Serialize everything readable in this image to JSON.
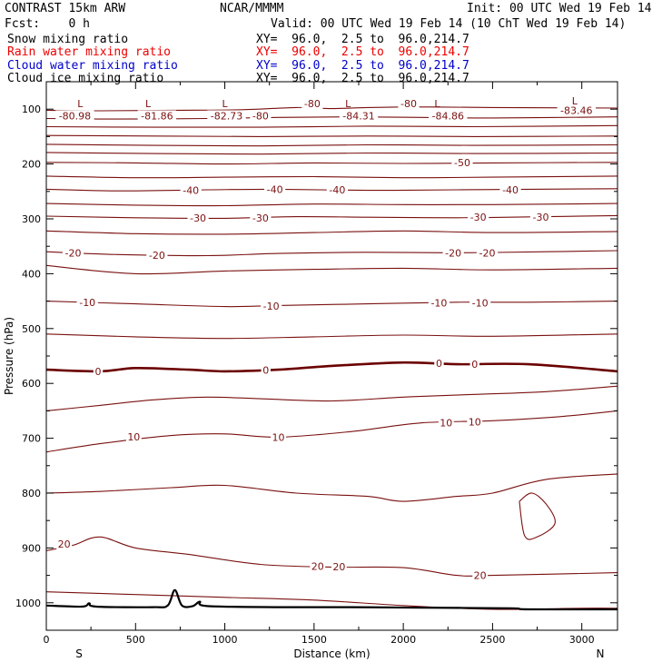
{
  "header": {
    "title": "CONTRAST 15km ARW",
    "center": "NCAR/MMMM",
    "init": "Init: 00 UTC Wed 19 Feb 14",
    "fcst": "Fcst:    0 h",
    "valid": "Valid: 00 UTC Wed 19 Feb 14 (10 ChT Wed 19 Feb 14)"
  },
  "fields": [
    {
      "name": "Snow mixing ratio",
      "xy": "XY=  96.0,  2.5 to  96.0,214.7",
      "color": "#000000"
    },
    {
      "name": "Rain water mixing ratio",
      "xy": "XY=  96.0,  2.5 to  96.0,214.7",
      "color": "#ee0000"
    },
    {
      "name": "Cloud water mixing ratio",
      "xy": "XY=  96.0,  2.5 to  96.0,214.7",
      "color": "#0000cc"
    },
    {
      "name": "Cloud ice mixing ratio",
      "xy": "XY=  96.0,  2.5 to  96.0,214.7",
      "color": "#000000"
    }
  ],
  "chart_data": {
    "type": "line",
    "xlabel": "Distance (km)",
    "ylabel": "Pressure (hPa)",
    "xlim": [
      0,
      3200
    ],
    "ylim": [
      1050,
      50
    ],
    "x_ticks": [
      0,
      500,
      1000,
      1500,
      2000,
      2500,
      3000
    ],
    "y_ticks": [
      100,
      200,
      300,
      400,
      500,
      600,
      700,
      800,
      900,
      1000
    ],
    "end_labels": {
      "left": "S",
      "right": "N"
    },
    "contour_color": "#7a1010",
    "zero_contour_color": "#6b0000",
    "terrain_color": "#000000",
    "isotherm_levels": [
      -85,
      -80,
      -75,
      -70,
      -65,
      -60,
      -55,
      -50,
      -45,
      -40,
      -35,
      -30,
      -25,
      -20,
      -15,
      -10,
      -5,
      0,
      5,
      10,
      15,
      20,
      25
    ],
    "isotherms": [
      {
        "level": -80,
        "points": [
          [
            0,
            102
          ],
          [
            300,
            103
          ],
          [
            700,
            102
          ],
          [
            1100,
            101
          ],
          [
            1400,
            97
          ],
          [
            1600,
            99
          ],
          [
            1800,
            97
          ],
          [
            2100,
            96
          ],
          [
            2500,
            97
          ],
          [
            3200,
            98
          ]
        ]
      },
      {
        "level": -75,
        "points": [
          [
            0,
            117
          ],
          [
            400,
            118
          ],
          [
            900,
            117
          ],
          [
            1300,
            115
          ],
          [
            1700,
            114
          ],
          [
            2100,
            115
          ],
          [
            2500,
            116
          ],
          [
            3200,
            114
          ]
        ]
      },
      {
        "level": -70,
        "points": [
          [
            0,
            132
          ],
          [
            600,
            133
          ],
          [
            1200,
            133
          ],
          [
            1800,
            131
          ],
          [
            2400,
            132
          ],
          [
            3200,
            130
          ]
        ]
      },
      {
        "level": -65,
        "points": [
          [
            0,
            148
          ],
          [
            600,
            149
          ],
          [
            1200,
            150
          ],
          [
            1800,
            149
          ],
          [
            2400,
            150
          ],
          [
            3200,
            149
          ]
        ]
      },
      {
        "level": -60,
        "points": [
          [
            0,
            164
          ],
          [
            600,
            166
          ],
          [
            1200,
            167
          ],
          [
            1800,
            165
          ],
          [
            2400,
            166
          ],
          [
            3200,
            165
          ]
        ]
      },
      {
        "level": -55,
        "points": [
          [
            0,
            179
          ],
          [
            600,
            181
          ],
          [
            1200,
            182
          ],
          [
            1800,
            180
          ],
          [
            2400,
            181
          ],
          [
            3200,
            180
          ]
        ]
      },
      {
        "level": -50,
        "points": [
          [
            0,
            197
          ],
          [
            500,
            198
          ],
          [
            1000,
            200
          ],
          [
            1500,
            198
          ],
          [
            2000,
            199
          ],
          [
            2500,
            198
          ],
          [
            3200,
            197
          ]
        ]
      },
      {
        "level": -45,
        "points": [
          [
            0,
            222
          ],
          [
            500,
            225
          ],
          [
            1000,
            224
          ],
          [
            1500,
            223
          ],
          [
            2000,
            225
          ],
          [
            2500,
            224
          ],
          [
            3200,
            222
          ]
        ]
      },
      {
        "level": -40,
        "points": [
          [
            0,
            246
          ],
          [
            400,
            249
          ],
          [
            900,
            247
          ],
          [
            1300,
            246
          ],
          [
            1800,
            248
          ],
          [
            2300,
            247
          ],
          [
            3200,
            245
          ]
        ]
      },
      {
        "level": -35,
        "points": [
          [
            0,
            272
          ],
          [
            500,
            275
          ],
          [
            1000,
            276
          ],
          [
            1500,
            273
          ],
          [
            2000,
            274
          ],
          [
            2500,
            274
          ],
          [
            3200,
            272
          ]
        ]
      },
      {
        "level": -30,
        "points": [
          [
            0,
            295
          ],
          [
            500,
            298
          ],
          [
            1000,
            299
          ],
          [
            1400,
            296
          ],
          [
            1800,
            297
          ],
          [
            2300,
            298
          ],
          [
            2800,
            296
          ],
          [
            3200,
            294
          ]
        ]
      },
      {
        "level": -25,
        "points": [
          [
            0,
            322
          ],
          [
            500,
            327
          ],
          [
            1000,
            328
          ],
          [
            1500,
            325
          ],
          [
            2000,
            322
          ],
          [
            2500,
            325
          ],
          [
            3200,
            323
          ]
        ]
      },
      {
        "level": -20,
        "points": [
          [
            0,
            360
          ],
          [
            400,
            365
          ],
          [
            900,
            367
          ],
          [
            1300,
            363
          ],
          [
            1800,
            361
          ],
          [
            2300,
            362
          ],
          [
            2800,
            360
          ],
          [
            3200,
            358
          ]
        ]
      },
      {
        "level": -15,
        "points": [
          [
            0,
            385
          ],
          [
            500,
            400
          ],
          [
            1000,
            395
          ],
          [
            1500,
            392
          ],
          [
            2000,
            390
          ],
          [
            2500,
            393
          ],
          [
            3200,
            390
          ]
        ]
      },
      {
        "level": -10,
        "points": [
          [
            0,
            450
          ],
          [
            500,
            455
          ],
          [
            1000,
            460
          ],
          [
            1300,
            458
          ],
          [
            1800,
            455
          ],
          [
            2300,
            452
          ],
          [
            2700,
            452
          ],
          [
            3200,
            450
          ]
        ]
      },
      {
        "level": -5,
        "points": [
          [
            0,
            510
          ],
          [
            500,
            515
          ],
          [
            1000,
            518
          ],
          [
            1500,
            515
          ],
          [
            2000,
            512
          ],
          [
            2500,
            514
          ],
          [
            3200,
            510
          ]
        ]
      },
      {
        "level": 0,
        "points": [
          [
            0,
            575
          ],
          [
            300,
            578
          ],
          [
            500,
            572
          ],
          [
            800,
            575
          ],
          [
            1000,
            578
          ],
          [
            1300,
            575
          ],
          [
            1600,
            568
          ],
          [
            2000,
            562
          ],
          [
            2300,
            565
          ],
          [
            2700,
            565
          ],
          [
            3200,
            578
          ]
        ]
      },
      {
        "level": 5,
        "points": [
          [
            0,
            650
          ],
          [
            300,
            640
          ],
          [
            600,
            630
          ],
          [
            900,
            625
          ],
          [
            1200,
            628
          ],
          [
            1600,
            632
          ],
          [
            2000,
            625
          ],
          [
            2400,
            620
          ],
          [
            2800,
            615
          ],
          [
            3200,
            605
          ]
        ]
      },
      {
        "level": 10,
        "points": [
          [
            0,
            725
          ],
          [
            300,
            710
          ],
          [
            700,
            695
          ],
          [
            1000,
            692
          ],
          [
            1300,
            698
          ],
          [
            1700,
            688
          ],
          [
            2100,
            672
          ],
          [
            2500,
            668
          ],
          [
            2900,
            660
          ],
          [
            3200,
            650
          ]
        ]
      },
      {
        "level": 15,
        "points": [
          [
            0,
            800
          ],
          [
            300,
            797
          ],
          [
            700,
            790
          ],
          [
            1000,
            786
          ],
          [
            1400,
            800
          ],
          [
            1800,
            806
          ],
          [
            2000,
            815
          ],
          [
            2300,
            806
          ],
          [
            2500,
            800
          ],
          [
            2800,
            775
          ],
          [
            3200,
            765
          ]
        ]
      },
      {
        "level": 20,
        "points": [
          [
            0,
            905
          ],
          [
            150,
            895
          ],
          [
            300,
            880
          ],
          [
            500,
            900
          ],
          [
            800,
            912
          ],
          [
            1200,
            930
          ],
          [
            1600,
            935
          ],
          [
            2000,
            936
          ],
          [
            2300,
            950
          ],
          [
            2500,
            950
          ],
          [
            3200,
            945
          ]
        ]
      },
      {
        "level": 25,
        "points": [
          [
            0,
            980
          ],
          [
            500,
            985
          ],
          [
            1000,
            990
          ],
          [
            1500,
            995
          ],
          [
            2000,
            1005
          ],
          [
            2500,
            1012
          ],
          [
            3000,
            1010
          ],
          [
            3200,
            1010
          ]
        ]
      }
    ],
    "closed_contours": [
      {
        "level": 15,
        "points": [
          [
            2650,
            815
          ],
          [
            2720,
            800
          ],
          [
            2800,
            820
          ],
          [
            2850,
            855
          ],
          [
            2750,
            880
          ],
          [
            2680,
            878
          ],
          [
            2650,
            815
          ]
        ]
      }
    ],
    "contour_labels": [
      {
        "text": "-80.98",
        "x": 160,
        "p": 112
      },
      {
        "text": "-81.86",
        "x": 620,
        "p": 112
      },
      {
        "text": "-82.73",
        "x": 1010,
        "p": 112
      },
      {
        "text": "-80",
        "x": 1200,
        "p": 112
      },
      {
        "text": "-84.31",
        "x": 1750,
        "p": 112
      },
      {
        "text": "-84.86",
        "x": 2250,
        "p": 112
      },
      {
        "text": "-83.46",
        "x": 2970,
        "p": 102
      },
      {
        "text": "-80",
        "x": 1490,
        "p": 90
      },
      {
        "text": "-80",
        "x": 2030,
        "p": 90
      },
      {
        "text": "-50",
        "x": 2330,
        "p": 197
      },
      {
        "text": "-40",
        "x": 810,
        "p": 248
      },
      {
        "text": "-40",
        "x": 1280,
        "p": 246
      },
      {
        "text": "-40",
        "x": 1630,
        "p": 247
      },
      {
        "text": "-40",
        "x": 2600,
        "p": 247
      },
      {
        "text": "-30",
        "x": 850,
        "p": 298
      },
      {
        "text": "-30",
        "x": 1200,
        "p": 298
      },
      {
        "text": "-30",
        "x": 2420,
        "p": 297
      },
      {
        "text": "-30",
        "x": 2770,
        "p": 297
      },
      {
        "text": "-20",
        "x": 150,
        "p": 362
      },
      {
        "text": "-20",
        "x": 620,
        "p": 366
      },
      {
        "text": "-20",
        "x": 2280,
        "p": 362
      },
      {
        "text": "-20",
        "x": 2470,
        "p": 362
      },
      {
        "text": "-10",
        "x": 230,
        "p": 452
      },
      {
        "text": "-10",
        "x": 1260,
        "p": 459
      },
      {
        "text": "-10",
        "x": 2200,
        "p": 453
      },
      {
        "text": "-10",
        "x": 2430,
        "p": 453
      },
      {
        "text": "0",
        "x": 290,
        "p": 578
      },
      {
        "text": "0",
        "x": 1230,
        "p": 576
      },
      {
        "text": "0",
        "x": 2200,
        "p": 563
      },
      {
        "text": "0",
        "x": 2400,
        "p": 565
      },
      {
        "text": "10",
        "x": 490,
        "p": 697
      },
      {
        "text": "10",
        "x": 1300,
        "p": 698
      },
      {
        "text": "10",
        "x": 2240,
        "p": 672
      },
      {
        "text": "10",
        "x": 2400,
        "p": 670
      },
      {
        "text": "20",
        "x": 100,
        "p": 893
      },
      {
        "text": "20",
        "x": 1520,
        "p": 933
      },
      {
        "text": "20",
        "x": 1640,
        "p": 934
      },
      {
        "text": "20",
        "x": 2430,
        "p": 950
      }
    ],
    "min_markers": [
      {
        "text": "L",
        "x": 190,
        "p": 90
      },
      {
        "text": "L",
        "x": 570,
        "p": 90
      },
      {
        "text": "L",
        "x": 1000,
        "p": 90
      },
      {
        "text": "L",
        "x": 1690,
        "p": 90
      },
      {
        "text": "L",
        "x": 2190,
        "p": 90
      },
      {
        "text": "L",
        "x": 2960,
        "p": 85
      }
    ],
    "terrain": [
      [
        0,
        1005
      ],
      [
        200,
        1007
      ],
      [
        240,
        1001
      ],
      [
        280,
        1007
      ],
      [
        600,
        1008
      ],
      [
        680,
        1005
      ],
      [
        720,
        977
      ],
      [
        760,
        1005
      ],
      [
        820,
        1006
      ],
      [
        860,
        998
      ],
      [
        900,
        1006
      ],
      [
        1300,
        1008
      ],
      [
        1700,
        1008
      ],
      [
        2100,
        1009
      ],
      [
        2600,
        1010
      ],
      [
        2700,
        1012
      ],
      [
        3200,
        1012
      ]
    ]
  }
}
